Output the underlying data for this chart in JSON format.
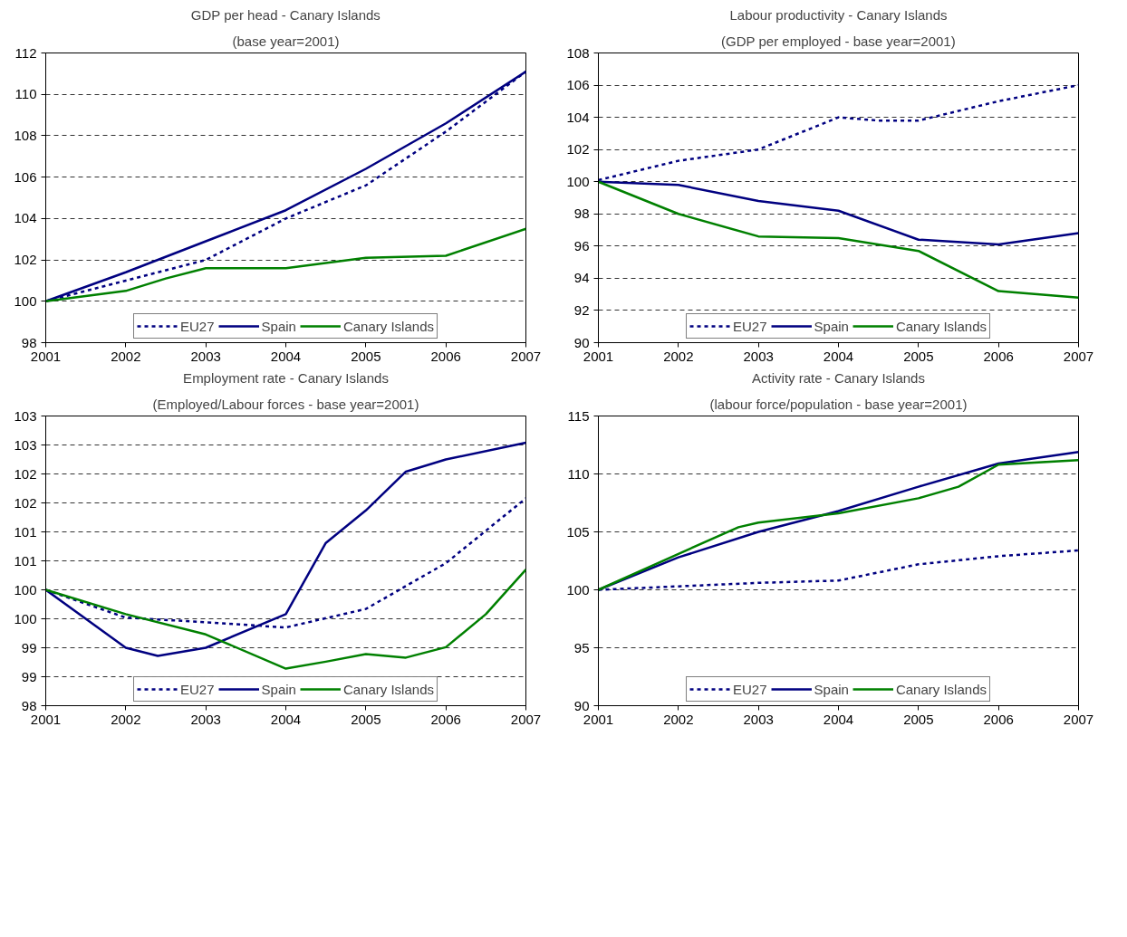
{
  "chart_data": [
    {
      "type": "line",
      "title": "GDP per head - Canary Islands",
      "subtitle": "(base year=2001)",
      "xlim": [
        2001,
        2007
      ],
      "xticks": [
        2001,
        2002,
        2003,
        2004,
        2005,
        2006,
        2007
      ],
      "ylim": [
        98,
        112
      ],
      "yticks": [
        98,
        100,
        102,
        104,
        106,
        108,
        110,
        112
      ],
      "grid": "y",
      "legend": "bottom",
      "series": [
        {
          "name": "EU27",
          "color": "#000080",
          "line_style": "dashed",
          "x": [
            2001,
            2002,
            2003,
            2004,
            2005,
            2006,
            2007
          ],
          "values": [
            100,
            101.0,
            102.0,
            104.0,
            105.6,
            108.2,
            111.1
          ]
        },
        {
          "name": "Spain",
          "color": "#000080",
          "x": [
            2001,
            2002,
            2003,
            2004,
            2005,
            2006,
            2007
          ],
          "values": [
            100,
            101.4,
            102.9,
            104.4,
            106.4,
            108.6,
            111.1
          ]
        },
        {
          "name": "Canary Islands",
          "color": "#008000",
          "x": [
            2001,
            2002,
            2002.5,
            2003,
            2003.5,
            2004,
            2005,
            2006,
            2007
          ],
          "values": [
            100,
            100.5,
            101.1,
            101.6,
            101.6,
            101.6,
            102.1,
            102.2,
            103.5
          ]
        }
      ]
    },
    {
      "type": "line",
      "title": "Labour productivity - Canary Islands",
      "subtitle": "(GDP per employed - base year=2001)",
      "xlim": [
        2001,
        2007
      ],
      "xticks": [
        2001,
        2002,
        2003,
        2004,
        2005,
        2006,
        2007
      ],
      "ylim": [
        90,
        108
      ],
      "yticks": [
        90,
        92,
        94,
        96,
        98,
        100,
        102,
        104,
        106,
        108
      ],
      "grid": "y",
      "legend": "bottom",
      "series": [
        {
          "name": "EU27",
          "color": "#000080",
          "line_style": "dashed",
          "x": [
            2001,
            2002,
            2003,
            2004,
            2004.5,
            2005,
            2006,
            2007
          ],
          "values": [
            100.1,
            101.3,
            102.0,
            104.0,
            103.8,
            103.8,
            105.0,
            106.0
          ]
        },
        {
          "name": "Spain",
          "color": "#000080",
          "x": [
            2001,
            2002,
            2003,
            2004,
            2005,
            2006,
            2007
          ],
          "values": [
            100,
            99.8,
            98.8,
            98.2,
            96.4,
            96.1,
            96.8
          ]
        },
        {
          "name": "Canary Islands",
          "color": "#008000",
          "x": [
            2001,
            2002,
            2003,
            2004,
            2005,
            2006,
            2007
          ],
          "values": [
            100,
            98.0,
            96.6,
            96.5,
            95.7,
            93.2,
            92.8
          ]
        }
      ]
    },
    {
      "type": "line",
      "title": "Employment rate - Canary Islands",
      "subtitle": "(Employed/Labour forces - base year=2001)",
      "xlim": [
        2001,
        2007
      ],
      "xticks": [
        2001,
        2002,
        2003,
        2004,
        2005,
        2006,
        2007
      ],
      "ylim": [
        98,
        103
      ],
      "yticks": [
        98,
        {
          "value": 98.5,
          "label": "99"
        },
        99,
        {
          "value": 99.5,
          "label": "100"
        },
        100,
        {
          "value": 100.5,
          "label": "101"
        },
        101,
        {
          "value": 101.5,
          "label": "102"
        },
        102,
        {
          "value": 102.5,
          "label": "103"
        },
        103
      ],
      "grid": "y",
      "legend": "bottom",
      "series": [
        {
          "name": "EU27",
          "color": "#000080",
          "line_style": "dashed",
          "x": [
            2001,
            2002,
            2003,
            2004,
            2005,
            2006,
            2007
          ],
          "values": [
            100,
            99.52,
            99.44,
            99.35,
            99.67,
            100.46,
            101.58
          ]
        },
        {
          "name": "Spain",
          "color": "#000080",
          "x": [
            2001,
            2002,
            2002.4,
            2003,
            2004,
            2004.5,
            2005,
            2005.5,
            2006,
            2007
          ],
          "values": [
            100,
            99.0,
            98.86,
            99.0,
            99.58,
            100.81,
            101.37,
            102.04,
            102.25,
            102.54
          ]
        },
        {
          "name": "Canary Islands",
          "color": "#008000",
          "x": [
            2001,
            2002,
            2003,
            2004,
            2004.5,
            2005,
            2005.5,
            2006,
            2006.5,
            2007
          ],
          "values": [
            100,
            99.58,
            99.23,
            98.64,
            98.76,
            98.89,
            98.83,
            99.01,
            99.58,
            100.35
          ]
        }
      ]
    },
    {
      "type": "line",
      "title": "Activity rate - Canary Islands",
      "subtitle": "(labour force/population - base year=2001)",
      "xlim": [
        2001,
        2007
      ],
      "xticks": [
        2001,
        2002,
        2003,
        2004,
        2005,
        2006,
        2007
      ],
      "ylim": [
        90,
        115
      ],
      "yticks": [
        90,
        95,
        100,
        105,
        110,
        115
      ],
      "grid": "y",
      "legend": "bottom",
      "series": [
        {
          "name": "EU27",
          "color": "#000080",
          "line_style": "dashed",
          "x": [
            2001,
            2002,
            2003,
            2004,
            2005,
            2006,
            2007
          ],
          "values": [
            100,
            100.3,
            100.6,
            100.8,
            102.2,
            102.9,
            103.4
          ]
        },
        {
          "name": "Spain",
          "color": "#000080",
          "x": [
            2001,
            2002,
            2003,
            2004,
            2005,
            2006,
            2007
          ],
          "values": [
            100,
            102.8,
            105.0,
            106.8,
            108.9,
            110.9,
            111.9
          ]
        },
        {
          "name": "Canary Islands",
          "color": "#008000",
          "x": [
            2001,
            2002,
            2002.75,
            2003,
            2004,
            2005,
            2005.5,
            2006,
            2007
          ],
          "values": [
            100,
            103.1,
            105.4,
            105.8,
            106.6,
            107.9,
            108.9,
            110.8,
            111.2
          ]
        }
      ]
    }
  ]
}
